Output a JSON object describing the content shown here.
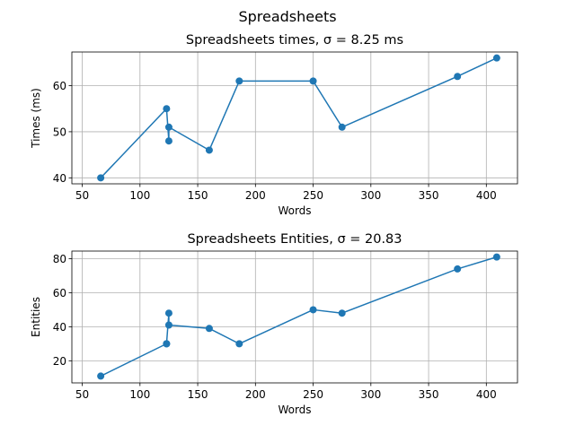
{
  "figure": {
    "suptitle": "Spreadsheets"
  },
  "style": {
    "line_color": "#1f77b4",
    "grid_color": "#b0b0b0",
    "axis_color": "#000000"
  },
  "chart_data": [
    {
      "type": "line",
      "title": "Spreadsheets times, σ = 8.25 ms",
      "xlabel": "Words",
      "ylabel": "Times (ms)",
      "xlim": [
        41,
        427
      ],
      "ylim": [
        38.7,
        67.3
      ],
      "xticks": [
        50,
        100,
        150,
        200,
        250,
        300,
        350,
        400
      ],
      "yticks": [
        40,
        50,
        60
      ],
      "grid": true,
      "markers": true,
      "series": [
        {
          "x": [
            66,
            123,
            125,
            125,
            160,
            186,
            250,
            275,
            375,
            409
          ],
          "y": [
            40,
            55,
            48,
            51,
            46,
            61,
            61,
            51,
            62,
            66
          ]
        }
      ]
    },
    {
      "type": "line",
      "title": "Spreadsheets Entities, σ = 20.83",
      "xlabel": "Words",
      "ylabel": "Entities",
      "xlim": [
        41,
        427
      ],
      "ylim": [
        7,
        84.5
      ],
      "xticks": [
        50,
        100,
        150,
        200,
        250,
        300,
        350,
        400
      ],
      "yticks": [
        20,
        40,
        60,
        80
      ],
      "grid": true,
      "markers": true,
      "series": [
        {
          "x": [
            66,
            123,
            123,
            125,
            125,
            160,
            186,
            250,
            275,
            375,
            409
          ],
          "y": [
            11,
            30,
            30,
            48,
            41,
            39,
            30,
            50,
            48,
            74,
            81
          ]
        }
      ]
    }
  ]
}
